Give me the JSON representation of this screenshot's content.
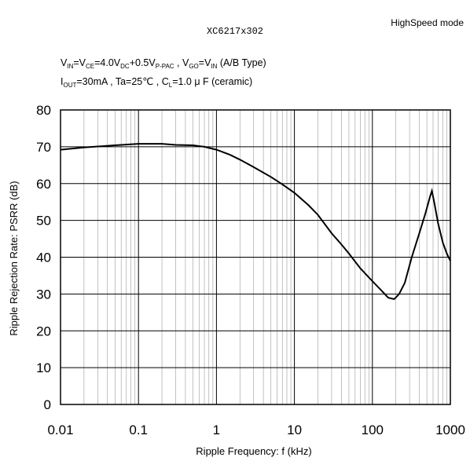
{
  "header": {
    "mode": "HighSpeed mode",
    "model": "XC6217x302"
  },
  "conditions": {
    "line1": {
      "v": "V",
      "in_sub": "IN",
      "eq_vce": "=V",
      "ce_sub": "CE",
      "vdc_text": "=4.0V",
      "dc_sub": "DC",
      "plus_text": "+0.5V",
      "ppac_sub": "P-PAC",
      "vgo_text": " , V",
      "go_sub": "GO",
      "eq_vin": "=V",
      "in_sub2": "IN",
      "type_text": " (A/B Type)"
    },
    "line2": {
      "i": "I",
      "out_sub": "OUT",
      "iout_text": "=30mA , Ta=25℃ , C",
      "l_sub": "L",
      "cl_text": "=1.0 μ F (ceramic)"
    }
  },
  "chart_data": {
    "type": "line",
    "title": "",
    "xlabel": "Ripple Frequency: f (kHz)",
    "ylabel": "Ripple Rejection Rate: PSRR (dB)",
    "xscale": "log",
    "xlim": [
      0.01,
      1000
    ],
    "ylim": [
      0,
      80
    ],
    "xticks": [
      0.01,
      0.1,
      1,
      10,
      100,
      1000
    ],
    "xtick_labels": [
      "0.01",
      "0.1",
      "1",
      "10",
      "100",
      "1000"
    ],
    "yticks": [
      0,
      10,
      20,
      30,
      40,
      50,
      60,
      70,
      80
    ],
    "ytick_labels": [
      "0",
      "10",
      "20",
      "30",
      "40",
      "50",
      "60",
      "70",
      "80"
    ],
    "grid": true,
    "series": [
      {
        "name": "",
        "color": "#000000",
        "points": [
          [
            0.01,
            69.2
          ],
          [
            0.02,
            69.8
          ],
          [
            0.05,
            70.4
          ],
          [
            0.1,
            70.8
          ],
          [
            0.2,
            70.8
          ],
          [
            0.3,
            70.5
          ],
          [
            0.5,
            70.4
          ],
          [
            0.7,
            70.0
          ],
          [
            1.0,
            69.2
          ],
          [
            1.5,
            67.8
          ],
          [
            2.0,
            66.5
          ],
          [
            3.0,
            64.5
          ],
          [
            5.0,
            61.8
          ],
          [
            7.0,
            59.8
          ],
          [
            10.0,
            57.5
          ],
          [
            15.0,
            54.2
          ],
          [
            20.0,
            51.5
          ],
          [
            30.0,
            46.5
          ],
          [
            40.0,
            43.5
          ],
          [
            50.0,
            41.0
          ],
          [
            70.0,
            37.0
          ],
          [
            100.0,
            33.5
          ],
          [
            130.0,
            31.0
          ],
          [
            160.0,
            29.0
          ],
          [
            190.0,
            28.6
          ],
          [
            220.0,
            30.0
          ],
          [
            260.0,
            33.0
          ],
          [
            320.0,
            40.0
          ],
          [
            400.0,
            46.5
          ],
          [
            480.0,
            52.0
          ],
          [
            550.0,
            56.5
          ],
          [
            580.0,
            58.0
          ],
          [
            620.0,
            55.0
          ],
          [
            700.0,
            49.0
          ],
          [
            800.0,
            44.0
          ],
          [
            900.0,
            41.0
          ],
          [
            1000.0,
            39.0
          ]
        ]
      }
    ]
  }
}
